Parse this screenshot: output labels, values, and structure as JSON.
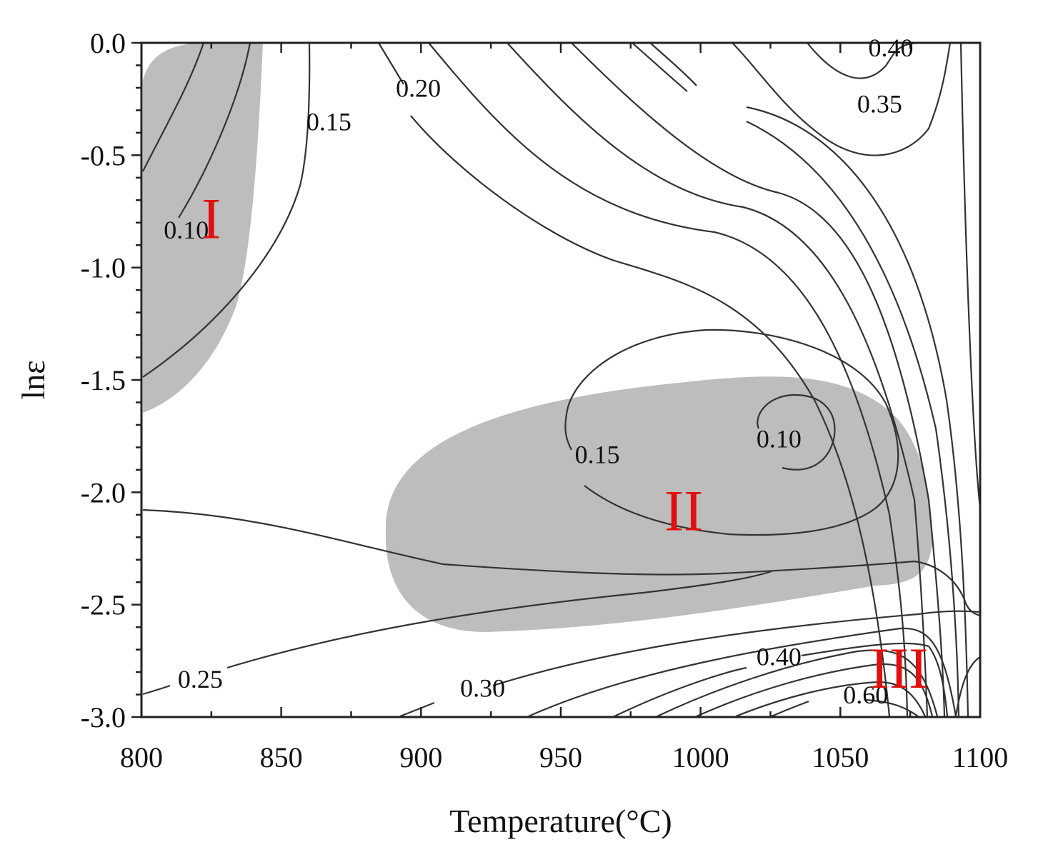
{
  "chart_data": {
    "type": "contour",
    "title": "",
    "xlabel": "Temperature(°C)",
    "ylabel": "lnε",
    "xlim": [
      800,
      1100
    ],
    "ylim": [
      -3.0,
      0.0
    ],
    "xticks": [
      "800",
      "850",
      "900",
      "950",
      "1000",
      "1050",
      "1100"
    ],
    "yticks": [
      "0.0",
      "-0.5",
      "-1.0",
      "-1.5",
      "-2.0",
      "-2.5",
      "-3.0"
    ],
    "contour_labels": [
      {
        "text": "0.10",
        "T": 808,
        "lnE": -0.87
      },
      {
        "text": "0.15",
        "T": 859,
        "lnE": -0.39
      },
      {
        "text": "0.20",
        "T": 891,
        "lnE": -0.24
      },
      {
        "text": "0.40",
        "T": 1060,
        "lnE": -0.06
      },
      {
        "text": "0.35",
        "T": 1056,
        "lnE": -0.31
      },
      {
        "text": "0.15",
        "T": 955,
        "lnE": -1.87
      },
      {
        "text": "0.10",
        "T": 1020,
        "lnE": -1.8
      },
      {
        "text": "0.25",
        "T": 813,
        "lnE": -2.87
      },
      {
        "text": "0.30",
        "T": 914,
        "lnE": -2.91
      },
      {
        "text": "0.40",
        "T": 1020,
        "lnE": -2.77
      },
      {
        "text": "0.60",
        "T": 1051,
        "lnE": -2.94
      }
    ],
    "regions": [
      {
        "text": "I",
        "T": 825,
        "lnE": -0.78
      },
      {
        "text": "II",
        "T": 994,
        "lnE": -2.08
      },
      {
        "text": "III",
        "T": 1071,
        "lnE": -2.78
      }
    ]
  }
}
